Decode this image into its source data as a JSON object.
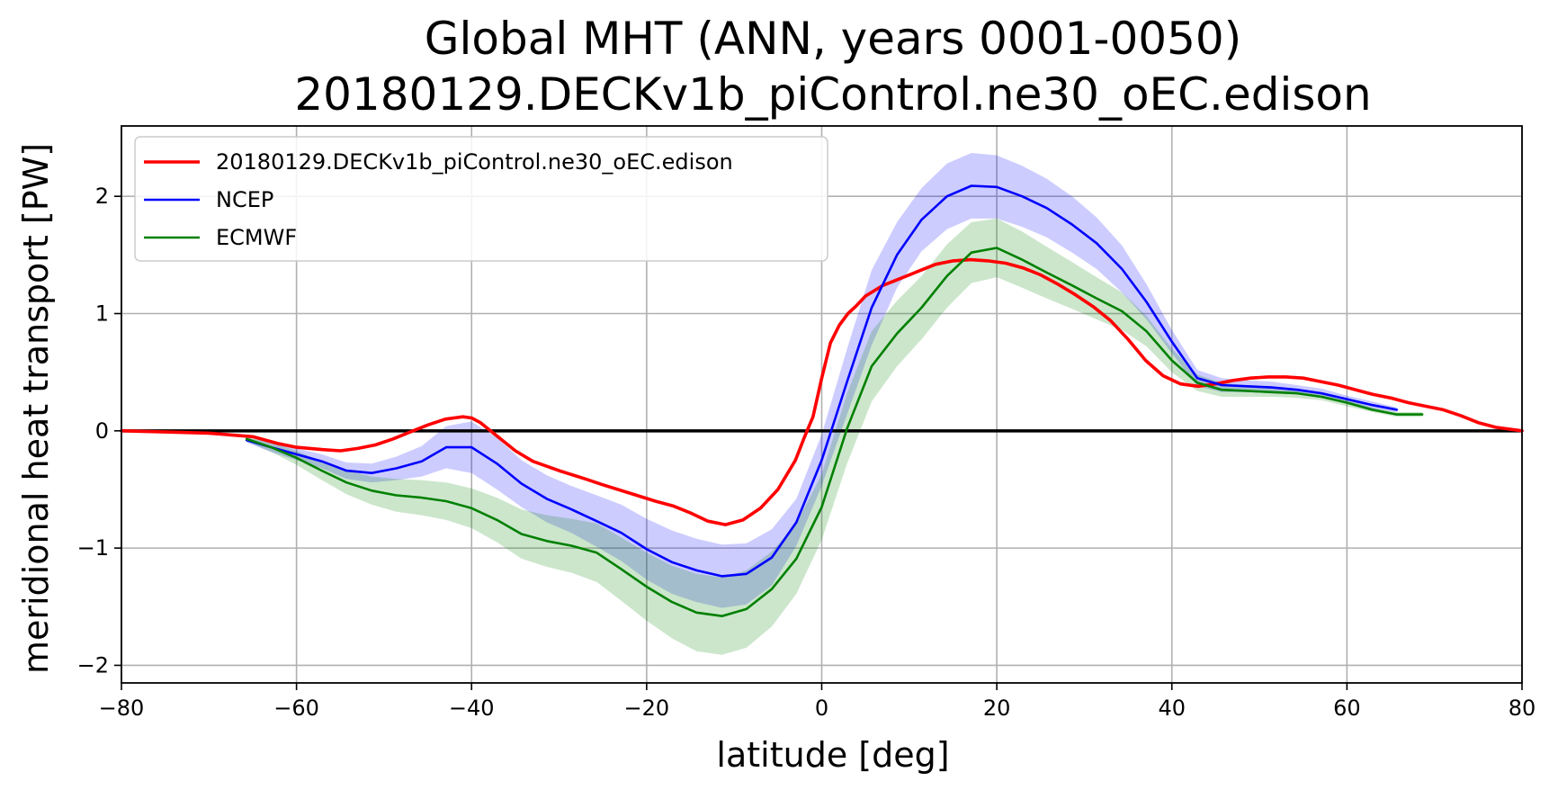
{
  "chart_data": {
    "type": "line",
    "title_line1": "Global MHT (ANN, years 0001-0050)",
    "title_line2": "20180129.DECKv1b_piControl.ne30_oEC.edison",
    "xlabel": "latitude [deg]",
    "ylabel": "meridional heat transport [PW]",
    "xlim": [
      -80,
      80
    ],
    "ylim": [
      -2.15,
      2.6
    ],
    "xticks": [
      -80,
      -60,
      -40,
      -20,
      0,
      20,
      40,
      60,
      80
    ],
    "xtick_labels": [
      "−80",
      "−60",
      "−40",
      "−20",
      "0",
      "20",
      "40",
      "60",
      "80"
    ],
    "yticks": [
      -2,
      -1,
      0,
      1,
      2
    ],
    "ytick_labels": [
      "−2",
      "−1",
      "0",
      "1",
      "2"
    ],
    "grid": true,
    "legend_position": "upper-left",
    "zero_line": true,
    "series": [
      {
        "name": "20180129.DECKv1b_piControl.ne30_oEC.edison",
        "color": "#ff0000",
        "x": [
          -80,
          -75,
          -70,
          -65,
          -62,
          -60,
          -57,
          -55,
          -53,
          -51,
          -49,
          -47,
          -45,
          -43,
          -41,
          -40,
          -39,
          -38,
          -37,
          -35,
          -33,
          -30,
          -27,
          -25,
          -22,
          -19,
          -17,
          -15,
          -13,
          -11,
          -9,
          -7,
          -5,
          -3,
          -2,
          -1,
          0,
          1,
          2,
          3,
          4,
          5,
          7,
          9,
          11,
          13,
          15,
          17,
          19,
          21,
          23,
          25,
          27,
          29,
          31,
          33,
          35,
          37,
          39,
          41,
          43,
          45,
          47,
          49,
          51,
          53,
          55,
          57,
          59,
          61,
          63,
          65,
          67,
          69,
          71,
          73,
          75,
          77,
          80
        ],
        "y": [
          0,
          -0.01,
          -0.02,
          -0.05,
          -0.11,
          -0.14,
          -0.16,
          -0.17,
          -0.15,
          -0.12,
          -0.07,
          -0.01,
          0.05,
          0.1,
          0.12,
          0.11,
          0.07,
          0.01,
          -0.05,
          -0.17,
          -0.26,
          -0.34,
          -0.41,
          -0.46,
          -0.53,
          -0.6,
          -0.64,
          -0.7,
          -0.77,
          -0.8,
          -0.76,
          -0.66,
          -0.5,
          -0.25,
          -0.06,
          0.12,
          0.45,
          0.75,
          0.9,
          1.0,
          1.07,
          1.15,
          1.24,
          1.3,
          1.36,
          1.42,
          1.45,
          1.46,
          1.45,
          1.43,
          1.39,
          1.33,
          1.25,
          1.16,
          1.06,
          0.94,
          0.78,
          0.6,
          0.47,
          0.4,
          0.38,
          0.4,
          0.43,
          0.45,
          0.46,
          0.46,
          0.45,
          0.42,
          0.39,
          0.35,
          0.31,
          0.28,
          0.24,
          0.21,
          0.18,
          0.13,
          0.07,
          0.03,
          0.0
        ]
      },
      {
        "name": "NCEP",
        "color": "#0000ff",
        "band_color": "#0000ff",
        "x": [
          -65.7,
          -62.9,
          -60,
          -57.1,
          -54.3,
          -51.4,
          -48.6,
          -45.7,
          -42.9,
          -40,
          -37.1,
          -34.3,
          -31.4,
          -28.6,
          -25.7,
          -22.9,
          -20,
          -17.1,
          -14.3,
          -11.4,
          -8.6,
          -5.7,
          -2.9,
          0,
          2.9,
          5.7,
          8.6,
          11.4,
          14.3,
          17.1,
          20,
          22.9,
          25.7,
          28.6,
          31.4,
          34.3,
          37.1,
          40,
          42.9,
          45.7,
          48.6,
          51.4,
          54.3,
          57.1,
          60,
          62.9,
          65.7
        ],
        "y": [
          -0.08,
          -0.14,
          -0.2,
          -0.26,
          -0.34,
          -0.36,
          -0.32,
          -0.26,
          -0.14,
          -0.14,
          -0.28,
          -0.45,
          -0.58,
          -0.67,
          -0.77,
          -0.87,
          -1.01,
          -1.12,
          -1.19,
          -1.24,
          -1.22,
          -1.08,
          -0.78,
          -0.25,
          0.42,
          1.05,
          1.5,
          1.8,
          2.0,
          2.09,
          2.08,
          2.0,
          1.9,
          1.76,
          1.6,
          1.38,
          1.1,
          0.76,
          0.45,
          0.39,
          0.38,
          0.37,
          0.35,
          0.32,
          0.27,
          0.22,
          0.18
        ],
        "band_width": [
          0.02,
          0.04,
          0.05,
          0.06,
          0.07,
          0.08,
          0.1,
          0.13,
          0.18,
          0.22,
          0.22,
          0.2,
          0.2,
          0.2,
          0.22,
          0.24,
          0.26,
          0.27,
          0.27,
          0.27,
          0.26,
          0.24,
          0.2,
          0.22,
          0.28,
          0.32,
          0.28,
          0.27,
          0.28,
          0.28,
          0.27,
          0.26,
          0.25,
          0.24,
          0.22,
          0.2,
          0.15,
          0.1,
          0.07,
          0.06,
          0.05,
          0.05,
          0.04,
          0.04,
          0.03,
          0.03,
          0.02
        ]
      },
      {
        "name": "ECMWF",
        "color": "#008000",
        "band_color": "#008000",
        "x": [
          -65.7,
          -62.9,
          -60,
          -57.1,
          -54.3,
          -51.4,
          -48.6,
          -45.7,
          -42.9,
          -40,
          -37.1,
          -34.3,
          -31.4,
          -28.6,
          -25.7,
          -22.9,
          -20,
          -17.1,
          -14.3,
          -11.4,
          -8.6,
          -5.7,
          -2.9,
          0,
          2.9,
          5.7,
          8.6,
          11.4,
          14.3,
          17.1,
          20,
          22.9,
          25.7,
          28.6,
          31.4,
          34.3,
          37.1,
          40,
          42.9,
          45.7,
          48.6,
          51.4,
          54.3,
          57.1,
          60,
          62.9,
          65.7,
          68.6
        ],
        "y": [
          -0.07,
          -0.14,
          -0.23,
          -0.34,
          -0.44,
          -0.51,
          -0.55,
          -0.57,
          -0.6,
          -0.66,
          -0.76,
          -0.88,
          -0.94,
          -0.98,
          -1.04,
          -1.18,
          -1.33,
          -1.46,
          -1.55,
          -1.58,
          -1.52,
          -1.35,
          -1.09,
          -0.65,
          0.02,
          0.55,
          0.83,
          1.05,
          1.32,
          1.52,
          1.56,
          1.46,
          1.35,
          1.24,
          1.13,
          1.02,
          0.85,
          0.6,
          0.41,
          0.35,
          0.34,
          0.33,
          0.32,
          0.29,
          0.24,
          0.18,
          0.14,
          0.14
        ],
        "band_width": [
          0.02,
          0.04,
          0.06,
          0.08,
          0.1,
          0.12,
          0.14,
          0.15,
          0.16,
          0.17,
          0.19,
          0.21,
          0.22,
          0.23,
          0.25,
          0.27,
          0.29,
          0.31,
          0.33,
          0.33,
          0.33,
          0.32,
          0.3,
          0.28,
          0.3,
          0.3,
          0.28,
          0.27,
          0.27,
          0.26,
          0.25,
          0.24,
          0.22,
          0.2,
          0.18,
          0.16,
          0.13,
          0.1,
          0.07,
          0.06,
          0.05,
          0.04,
          0.04,
          0.03,
          0.03,
          0.02,
          0.02,
          0.02
        ]
      }
    ]
  }
}
